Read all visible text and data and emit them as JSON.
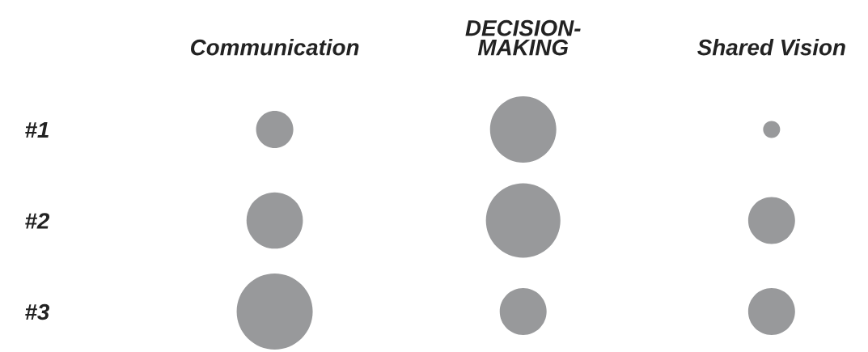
{
  "chart_data": {
    "type": "bubble",
    "categories": [
      "Communication",
      "DECISION-\nMAKING",
      "Shared Vision"
    ],
    "ylim": [
      3,
      1
    ],
    "yticks": [
      {
        "value": 1,
        "label": "#1"
      },
      {
        "value": 2,
        "label": "#2"
      },
      {
        "value": 3,
        "label": "#3"
      }
    ],
    "series": [
      {
        "color": "#98999b",
        "values": [
          1,
          1,
          1
        ],
        "sizes": [
          0.24,
          0.76,
          0.05
        ]
      },
      {
        "color": "#98999b",
        "values": [
          2,
          2,
          2
        ],
        "sizes": [
          0.55,
          0.96,
          0.38
        ]
      },
      {
        "color": "#98999b",
        "values": [
          3,
          3,
          3
        ],
        "sizes": [
          1,
          0.38,
          0.38
        ]
      }
    ]
  }
}
